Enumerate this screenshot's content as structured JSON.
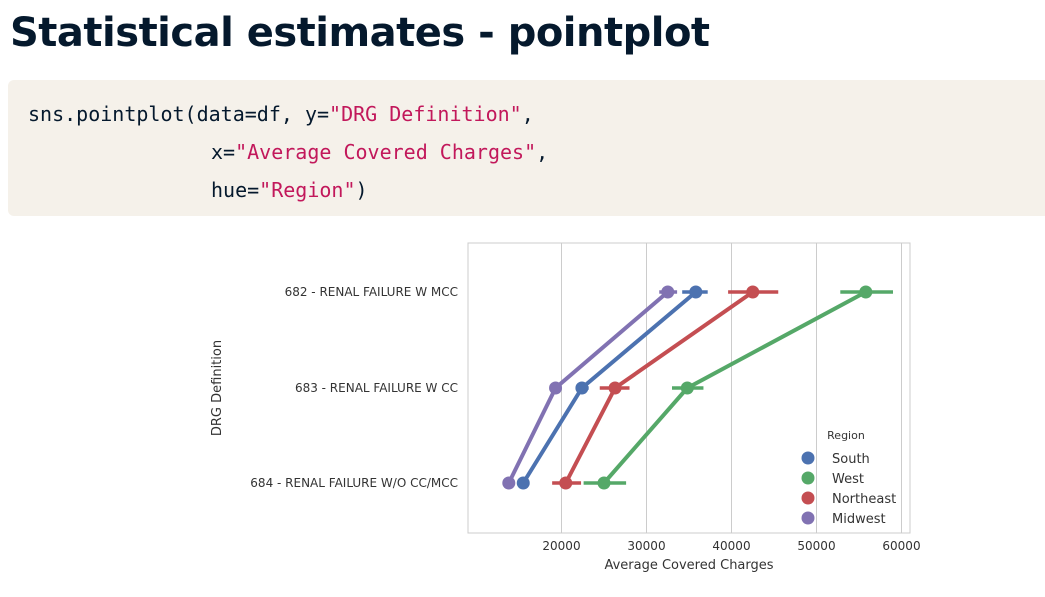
{
  "slide": {
    "title": "Statistical estimates - pointplot"
  },
  "code": {
    "line1": {
      "fn": "sns.pointplot(data=df, y=",
      "str": "\"DRG Definition\"",
      "end": ","
    },
    "line2": {
      "pre": "x=",
      "str": "\"Average Covered Charges\"",
      "end": ","
    },
    "line3": {
      "pre": "hue=",
      "str": "\"Region\"",
      "end": ")"
    }
  },
  "chart_data": {
    "type": "pointplot",
    "orientation": "horizontal",
    "categories": [
      "682 - RENAL FAILURE W MCC",
      "683 - RENAL FAILURE W CC",
      "684 - RENAL FAILURE W/O CC/MCC"
    ],
    "xlabel": "Average Covered Charges",
    "ylabel": "DRG Definition",
    "xlim": [
      9000,
      61000
    ],
    "xticks": [
      20000,
      30000,
      40000,
      50000,
      60000
    ],
    "grid": "vertical",
    "legend": {
      "title": "Region",
      "placement": "bottom-right"
    },
    "series": [
      {
        "name": "South",
        "color": "#4c72b0",
        "values": [
          35800,
          22400,
          15500
        ],
        "ci": [
          [
            34200,
            37200
          ],
          [
            21700,
            23200
          ],
          [
            14900,
            16200
          ]
        ]
      },
      {
        "name": "West",
        "color": "#55a868",
        "values": [
          55800,
          34800,
          25000
        ],
        "ci": [
          [
            52800,
            59000
          ],
          [
            33000,
            36700
          ],
          [
            22600,
            27600
          ]
        ]
      },
      {
        "name": "Northeast",
        "color": "#c44e52",
        "values": [
          42500,
          26300,
          20500
        ],
        "ci": [
          [
            39600,
            45500
          ],
          [
            24500,
            28000
          ],
          [
            18900,
            22300
          ]
        ]
      },
      {
        "name": "Midwest",
        "color": "#8172b2",
        "values": [
          32500,
          19300,
          13800
        ],
        "ci": [
          [
            31500,
            33600
          ],
          [
            18700,
            20000
          ],
          [
            13300,
            14400
          ]
        ]
      }
    ]
  }
}
